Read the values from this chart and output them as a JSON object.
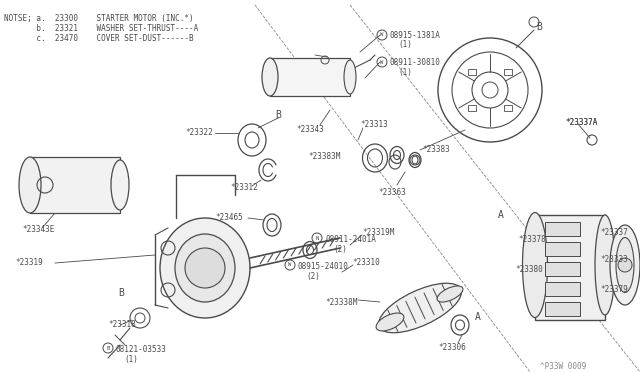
{
  "background_color": "#ffffff",
  "lc": "#4a4a4a",
  "tc": "#4a4a4a",
  "watermark": "^P33W 0009",
  "notes": [
    "NOTSE; a.  23300    STARTER MOTOR (INC.*)",
    "       b.  23321    WASHER SET-THRUST----A",
    "       c.  23470    COVER SET-DUST------B"
  ]
}
